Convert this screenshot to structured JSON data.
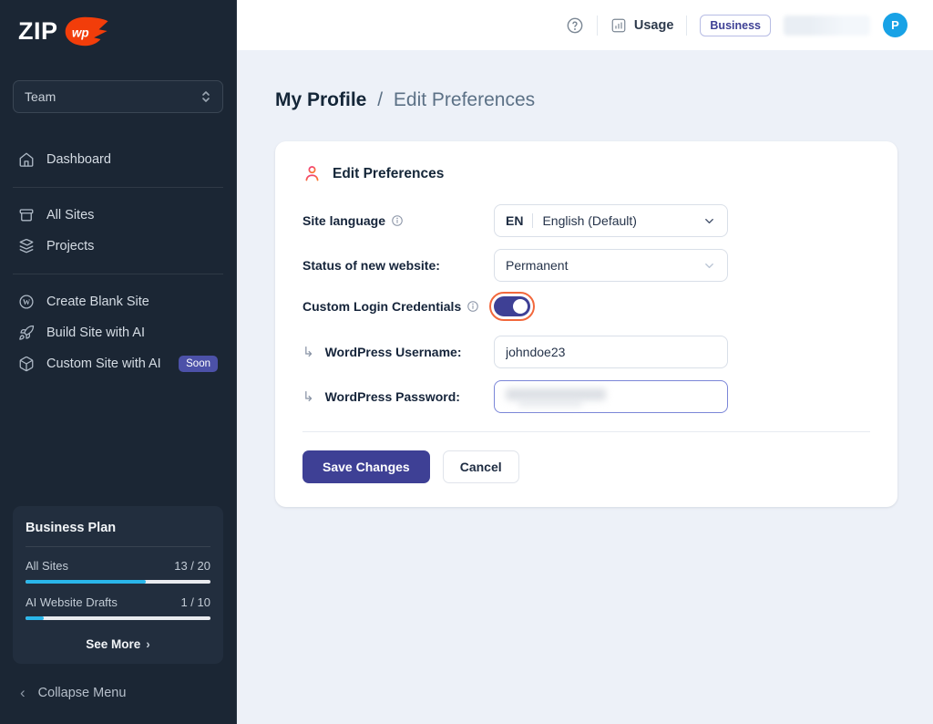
{
  "brand": {
    "zip": "ZIP",
    "wp": "WP"
  },
  "sidebar": {
    "team_selector": {
      "label": "Team"
    },
    "nav": [
      {
        "label": "Dashboard",
        "icon": "home-icon"
      },
      {
        "label": "All Sites",
        "icon": "sites-icon"
      },
      {
        "label": "Projects",
        "icon": "layers-icon"
      },
      {
        "label": "Create Blank Site",
        "icon": "wordpress-icon"
      },
      {
        "label": "Build Site with AI",
        "icon": "rocket-icon"
      },
      {
        "label": "Custom Site with AI",
        "icon": "cube-icon",
        "badge": "Soon"
      }
    ],
    "plan": {
      "title": "Business Plan",
      "usages": [
        {
          "label": "All Sites",
          "value": "13 / 20",
          "percent": 65
        },
        {
          "label": "AI Website Drafts",
          "value": "1 / 10",
          "percent": 10
        }
      ],
      "see_more": "See More",
      "see_more_chevron": "›"
    },
    "collapse": {
      "chevron": "‹",
      "label": "Collapse Menu"
    }
  },
  "header": {
    "usage_label": "Usage",
    "plan_badge": "Business",
    "avatar_initial": "P"
  },
  "breadcrumb": {
    "primary": "My Profile",
    "separator": "/",
    "secondary": "Edit Preferences"
  },
  "form": {
    "title": "Edit Preferences",
    "site_language": {
      "label": "Site language",
      "code": "EN",
      "value": "English (Default)"
    },
    "status": {
      "label": "Status of new website:",
      "value": "Permanent"
    },
    "custom_login": {
      "label": "Custom Login Credentials",
      "state": "on"
    },
    "username": {
      "label": "WordPress Username:",
      "value": "johndoe23"
    },
    "password": {
      "label": "WordPress Password:",
      "value": ""
    },
    "save_label": "Save Changes",
    "cancel_label": "Cancel"
  },
  "colors": {
    "accent_indigo": "#3e4095",
    "focus_ring_orange": "#f2683c",
    "brand_orange": "#f23d0a",
    "progress_cyan": "#2ab6ea",
    "avatar_blue": "#18a2e6",
    "sidebar_bg": "#1b2634",
    "content_bg": "#edf1f8",
    "soon_badge": "#4c51a8"
  }
}
